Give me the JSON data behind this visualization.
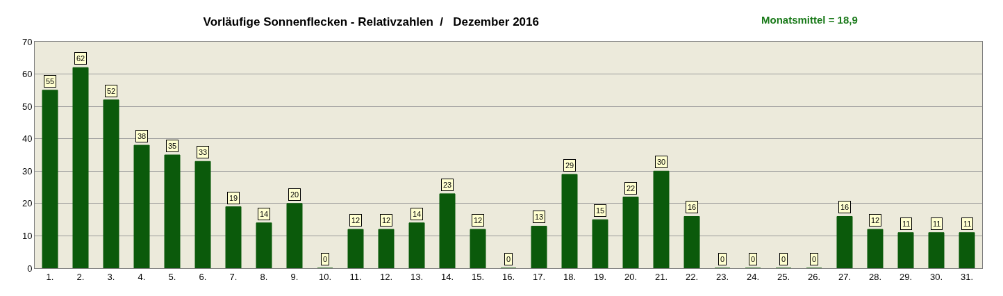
{
  "chart_data": {
    "type": "bar",
    "title": "Vorläufige Sonnenflecken - Relativzahlen  /   Dezember 2016",
    "annotations": [
      "Monatsmittel = 18,9"
    ],
    "categories": [
      "1.",
      "2.",
      "3.",
      "4.",
      "5.",
      "6.",
      "7.",
      "8.",
      "9.",
      "10.",
      "11.",
      "12.",
      "13.",
      "14.",
      "15.",
      "16.",
      "17.",
      "18.",
      "19.",
      "20.",
      "21.",
      "22.",
      "23.",
      "24.",
      "25.",
      "26.",
      "27.",
      "28.",
      "29.",
      "30.",
      "31."
    ],
    "values": [
      55,
      62,
      52,
      38,
      35,
      33,
      19,
      14,
      20,
      0,
      12,
      12,
      14,
      23,
      12,
      0,
      13,
      29,
      15,
      22,
      30,
      16,
      0,
      0,
      0,
      0,
      16,
      12,
      11,
      11,
      11
    ],
    "color": "#0b5a0b",
    "ylim": [
      0,
      70
    ],
    "yticks": [
      0,
      10,
      20,
      30,
      40,
      50,
      60,
      70
    ],
    "grid": "y",
    "legend": false,
    "data_labels": true
  }
}
